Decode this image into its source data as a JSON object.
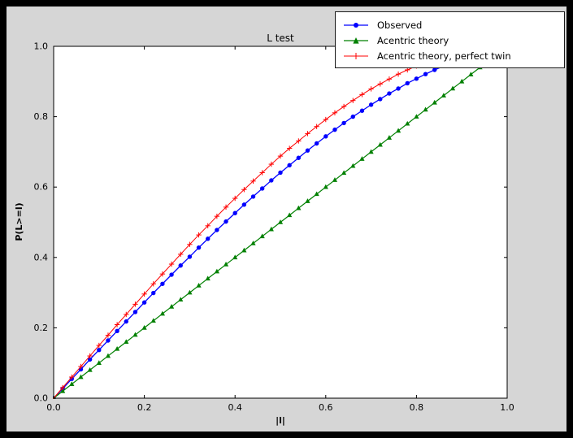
{
  "window": {
    "background_color": "#000000",
    "figure_background_color": "#d6d6d6",
    "axes_background_color": "#ffffff"
  },
  "chart_data": {
    "type": "line",
    "title": "L test",
    "xlabel": "|l|",
    "ylabel": "P(L>=l)",
    "xlim": [
      0.0,
      1.0
    ],
    "ylim": [
      0.0,
      1.0
    ],
    "xticks": [
      0.0,
      0.2,
      0.4,
      0.6,
      0.8,
      1.0
    ],
    "yticks": [
      0.0,
      0.2,
      0.4,
      0.6,
      0.8,
      1.0
    ],
    "xtick_labels": [
      "0.0",
      "0.2",
      "0.4",
      "0.6",
      "0.8",
      "1.0"
    ],
    "ytick_labels": [
      "0.0",
      "0.2",
      "0.4",
      "0.6",
      "0.8",
      "1.0"
    ],
    "grid": false,
    "legend_position": "upper right",
    "series": [
      {
        "name": "Observed",
        "color": "#0000ff",
        "marker": "circle",
        "x": [
          0.0,
          0.02,
          0.04,
          0.06,
          0.08,
          0.1,
          0.12,
          0.14,
          0.16,
          0.18,
          0.2,
          0.22,
          0.24,
          0.26,
          0.28,
          0.3,
          0.32,
          0.34,
          0.36,
          0.38,
          0.4,
          0.42,
          0.44,
          0.46,
          0.48,
          0.5,
          0.52,
          0.54,
          0.56,
          0.58,
          0.6,
          0.62,
          0.64,
          0.66,
          0.68,
          0.7,
          0.72,
          0.74,
          0.76,
          0.78,
          0.8,
          0.82,
          0.84,
          0.86
        ],
        "y": [
          0.0,
          0.027,
          0.055,
          0.082,
          0.11,
          0.137,
          0.164,
          0.191,
          0.218,
          0.245,
          0.272,
          0.299,
          0.325,
          0.351,
          0.377,
          0.402,
          0.428,
          0.453,
          0.478,
          0.502,
          0.526,
          0.55,
          0.573,
          0.596,
          0.619,
          0.641,
          0.662,
          0.683,
          0.704,
          0.724,
          0.744,
          0.763,
          0.782,
          0.8,
          0.817,
          0.834,
          0.85,
          0.866,
          0.88,
          0.895,
          0.908,
          0.921,
          0.933,
          0.944
        ]
      },
      {
        "name": "Acentric theory",
        "color": "#008000",
        "marker": "triangle-up",
        "x": [
          0.0,
          0.02,
          0.04,
          0.06,
          0.08,
          0.1,
          0.12,
          0.14,
          0.16,
          0.18,
          0.2,
          0.22,
          0.24,
          0.26,
          0.28,
          0.3,
          0.32,
          0.34,
          0.36,
          0.38,
          0.4,
          0.42,
          0.44,
          0.46,
          0.48,
          0.5,
          0.52,
          0.54,
          0.56,
          0.58,
          0.6,
          0.62,
          0.64,
          0.66,
          0.68,
          0.7,
          0.72,
          0.74,
          0.76,
          0.78,
          0.8,
          0.82,
          0.84,
          0.86,
          0.88,
          0.9,
          0.92,
          0.94,
          0.96
        ],
        "y": [
          0.0,
          0.02,
          0.04,
          0.06,
          0.08,
          0.1,
          0.12,
          0.14,
          0.16,
          0.18,
          0.2,
          0.22,
          0.24,
          0.26,
          0.28,
          0.3,
          0.32,
          0.34,
          0.36,
          0.38,
          0.4,
          0.42,
          0.44,
          0.46,
          0.48,
          0.5,
          0.52,
          0.54,
          0.56,
          0.58,
          0.6,
          0.62,
          0.64,
          0.66,
          0.68,
          0.7,
          0.72,
          0.74,
          0.76,
          0.78,
          0.8,
          0.82,
          0.84,
          0.86,
          0.88,
          0.9,
          0.92,
          0.94,
          0.96
        ]
      },
      {
        "name": "Acentric theory, perfect twin",
        "color": "#ff0000",
        "marker": "plus",
        "x": [
          0.0,
          0.02,
          0.04,
          0.06,
          0.08,
          0.1,
          0.12,
          0.14,
          0.16,
          0.18,
          0.2,
          0.22,
          0.24,
          0.26,
          0.28,
          0.3,
          0.32,
          0.34,
          0.36,
          0.38,
          0.4,
          0.42,
          0.44,
          0.46,
          0.48,
          0.5,
          0.52,
          0.54,
          0.56,
          0.58,
          0.6,
          0.62,
          0.64,
          0.66,
          0.68,
          0.7,
          0.72,
          0.74,
          0.76,
          0.78,
          0.8,
          0.82,
          0.84
        ],
        "y": [
          0.0,
          0.03,
          0.06,
          0.09,
          0.12,
          0.15,
          0.179,
          0.209,
          0.238,
          0.267,
          0.296,
          0.325,
          0.353,
          0.381,
          0.409,
          0.437,
          0.464,
          0.49,
          0.517,
          0.543,
          0.568,
          0.593,
          0.617,
          0.641,
          0.665,
          0.688,
          0.71,
          0.731,
          0.752,
          0.772,
          0.792,
          0.811,
          0.829,
          0.846,
          0.863,
          0.879,
          0.893,
          0.907,
          0.921,
          0.933,
          0.944,
          0.954,
          0.964
        ]
      }
    ]
  }
}
